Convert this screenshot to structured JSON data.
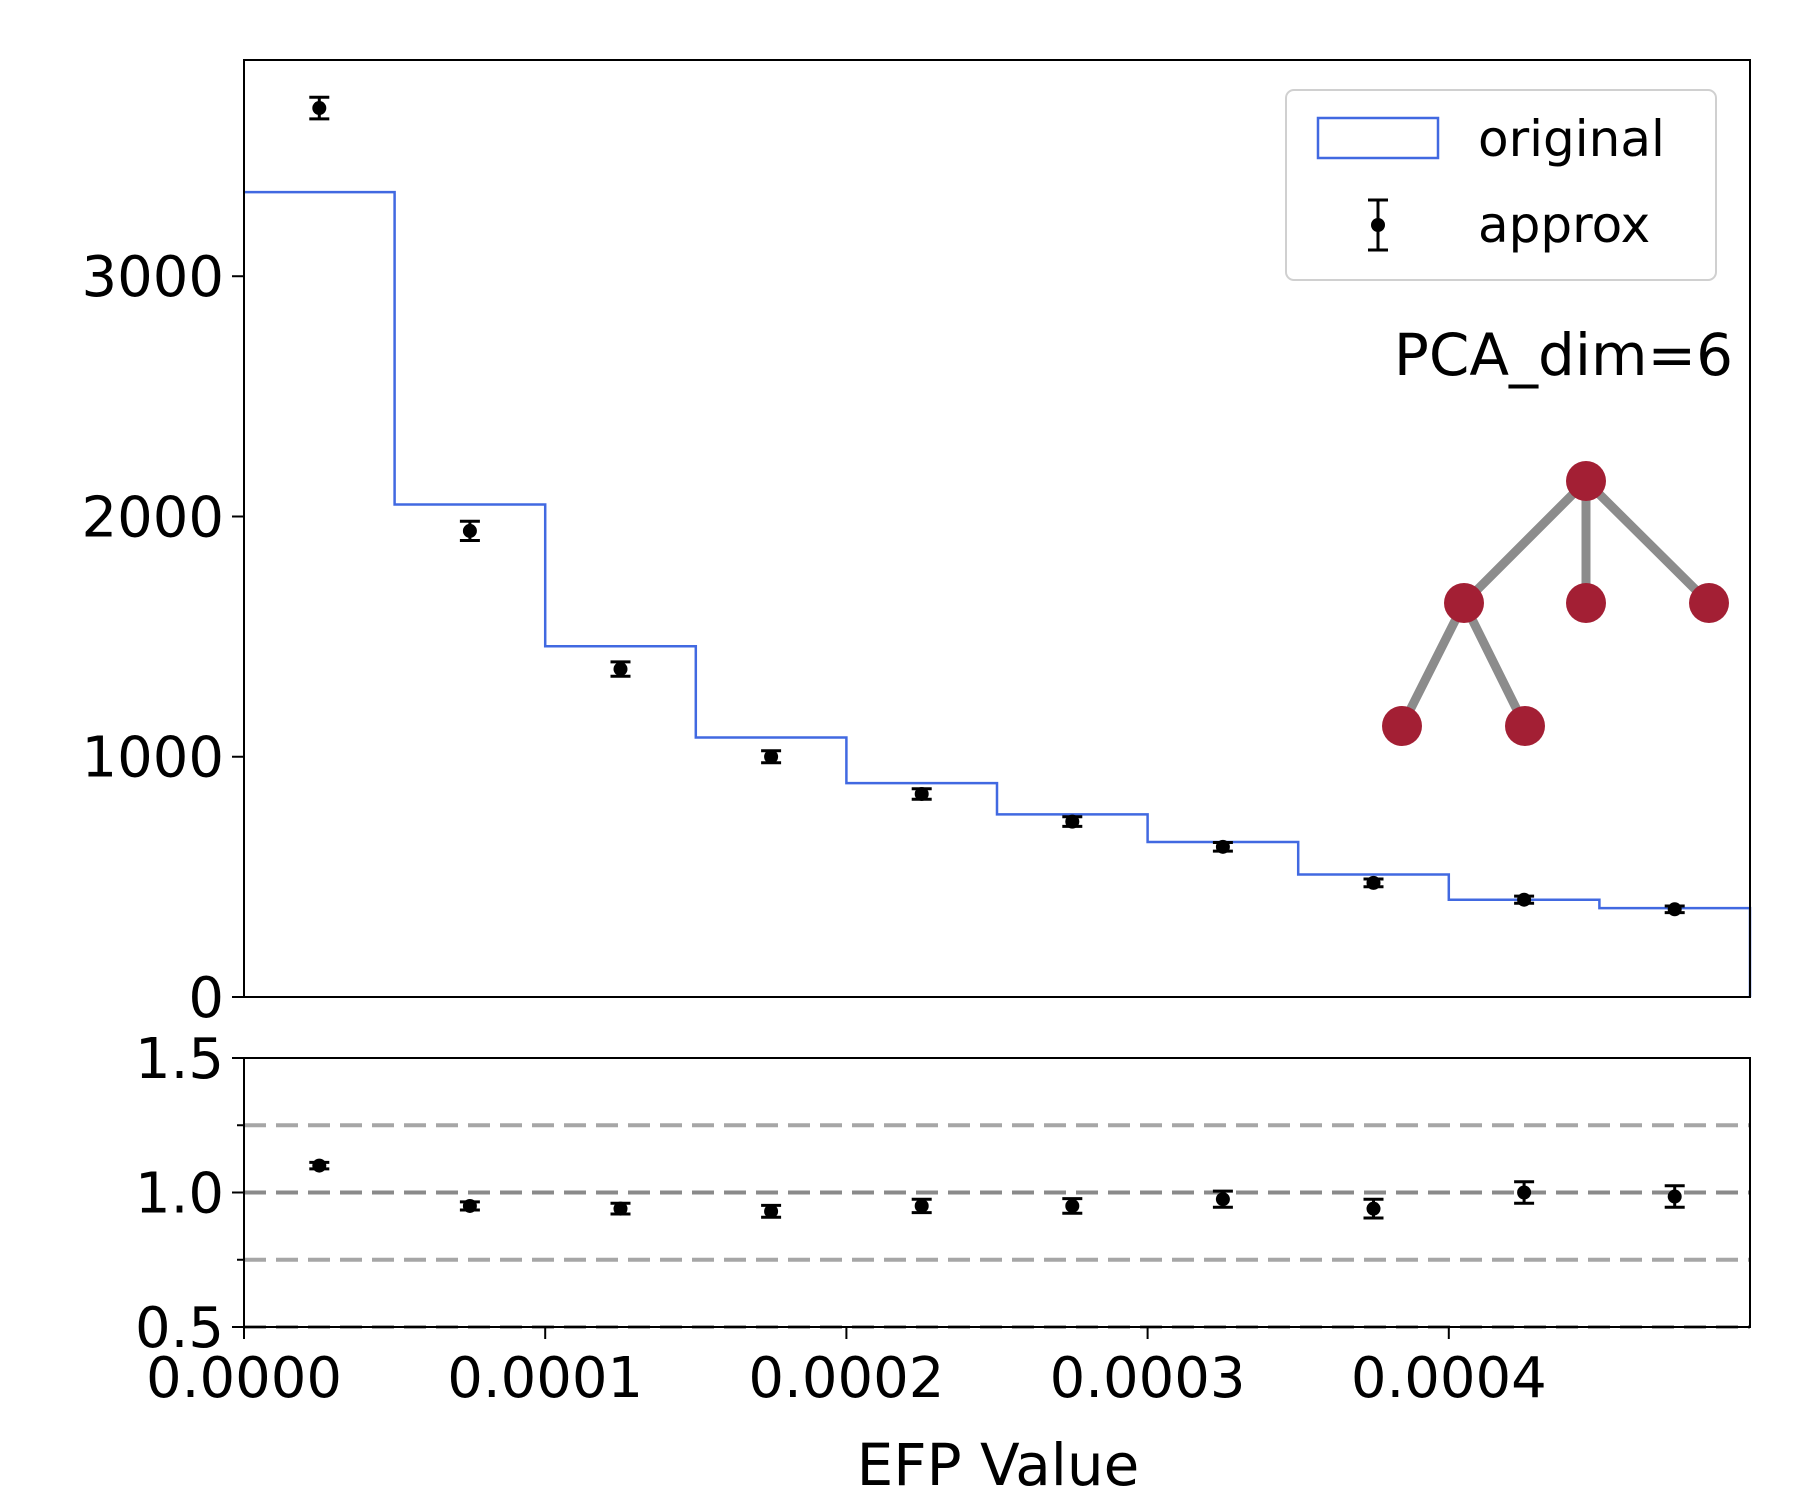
{
  "chart_data": [
    {
      "type": "bar",
      "panel": "main",
      "x_bin_edges": [
        0.0,
        5e-05,
        0.0001,
        0.00015,
        0.0002,
        0.00025,
        0.0003,
        0.00035,
        0.0004,
        0.00045,
        0.0005
      ],
      "ylim": [
        0,
        3900
      ],
      "yticks": [
        "0",
        "1000",
        "2000",
        "3000"
      ],
      "series": [
        {
          "name": "original",
          "type": "step",
          "color": "#4169e1",
          "values": [
            3350,
            2050,
            1460,
            1080,
            890,
            760,
            645,
            510,
            405,
            370
          ]
        },
        {
          "name": "approx",
          "type": "errorbar",
          "color": "#000000",
          "x": [
            2.5e-05,
            7.5e-05,
            0.000125,
            0.000175,
            0.000225,
            0.000275,
            0.000325,
            0.000375,
            0.000425,
            0.000475
          ],
          "values": [
            3700,
            1940,
            1365,
            1000,
            845,
            730,
            625,
            475,
            405,
            365
          ],
          "errors": [
            45,
            40,
            30,
            25,
            22,
            20,
            18,
            16,
            15,
            14
          ]
        }
      ],
      "legend_position": "top-right",
      "annotation": "PCA_dim=6",
      "inset_graph": {
        "node_color": "#a31f34",
        "edge_color": "#8c8c8c"
      }
    },
    {
      "type": "scatter",
      "panel": "ratio",
      "x": [
        2.5e-05,
        7.5e-05,
        0.000125,
        0.000175,
        0.000225,
        0.000275,
        0.000325,
        0.000375,
        0.000425,
        0.000475
      ],
      "values": [
        1.1,
        0.95,
        0.94,
        0.93,
        0.95,
        0.95,
        0.975,
        0.94,
        1.0,
        0.985
      ],
      "errors": [
        0.012,
        0.015,
        0.02,
        0.022,
        0.025,
        0.027,
        0.03,
        0.035,
        0.04,
        0.04
      ],
      "ylim": [
        0.5,
        1.5
      ],
      "yticks": [
        "0.5",
        "1.0",
        "1.5"
      ],
      "reference_lines": [
        0.5,
        0.75,
        1.0,
        1.25
      ],
      "xlim": [
        0.0,
        0.0005
      ],
      "xticks": [
        "0.0000",
        "0.0001",
        "0.0002",
        "0.0003",
        "0.0004"
      ],
      "xlabel": "EFP Value"
    }
  ],
  "legend": {
    "original_label": "original",
    "approx_label": "approx"
  },
  "annotation_text": "PCA_dim=6",
  "xlabel": "EFP Value"
}
